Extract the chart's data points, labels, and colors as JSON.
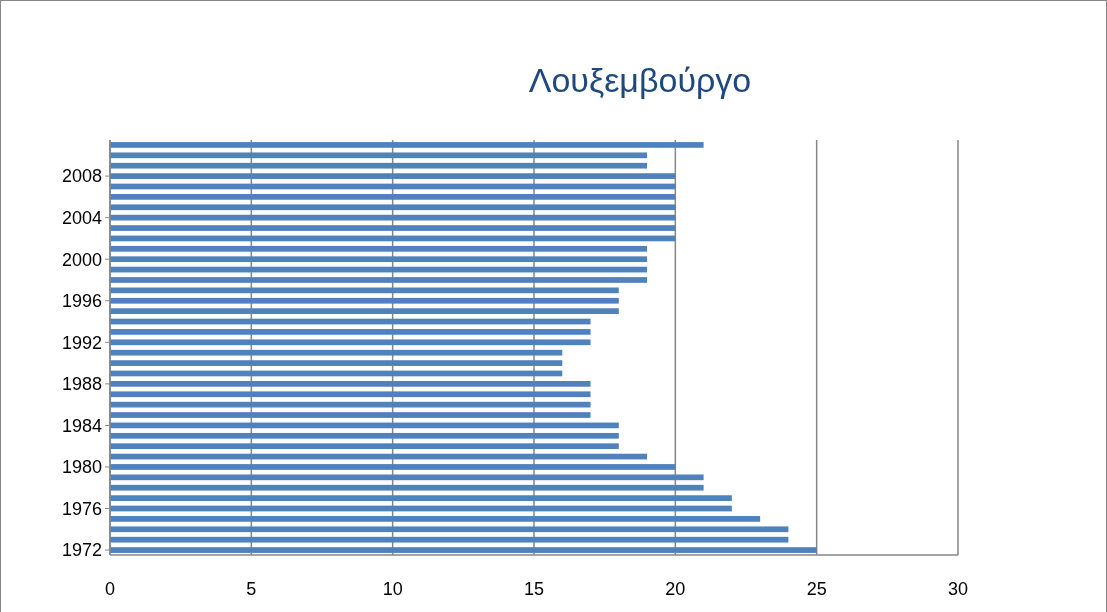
{
  "chart_data": {
    "type": "bar",
    "orientation": "horizontal",
    "title": "Λουξεμβούργο",
    "categories": [
      null,
      null,
      null,
      "2008",
      null,
      null,
      null,
      "2004",
      null,
      null,
      null,
      "2000",
      null,
      null,
      null,
      "1996",
      null,
      null,
      null,
      "1992",
      null,
      null,
      null,
      "1988",
      null,
      null,
      null,
      "1984",
      null,
      null,
      null,
      "1980",
      null,
      null,
      null,
      "1976",
      null,
      null,
      null,
      "1972"
    ],
    "values": [
      21,
      19,
      19,
      20,
      20,
      20,
      20,
      20,
      20,
      20,
      19,
      19,
      19,
      19,
      18,
      18,
      18,
      17,
      17,
      17,
      16,
      16,
      16,
      17,
      17,
      17,
      17,
      18,
      18,
      18,
      19,
      20,
      21,
      21,
      22,
      22,
      23,
      24,
      24,
      25
    ],
    "color": "#4f81bd",
    "xlim": [
      0,
      30
    ],
    "xticks": [
      0,
      5,
      10,
      15,
      20,
      25,
      30
    ],
    "grid": "x"
  }
}
